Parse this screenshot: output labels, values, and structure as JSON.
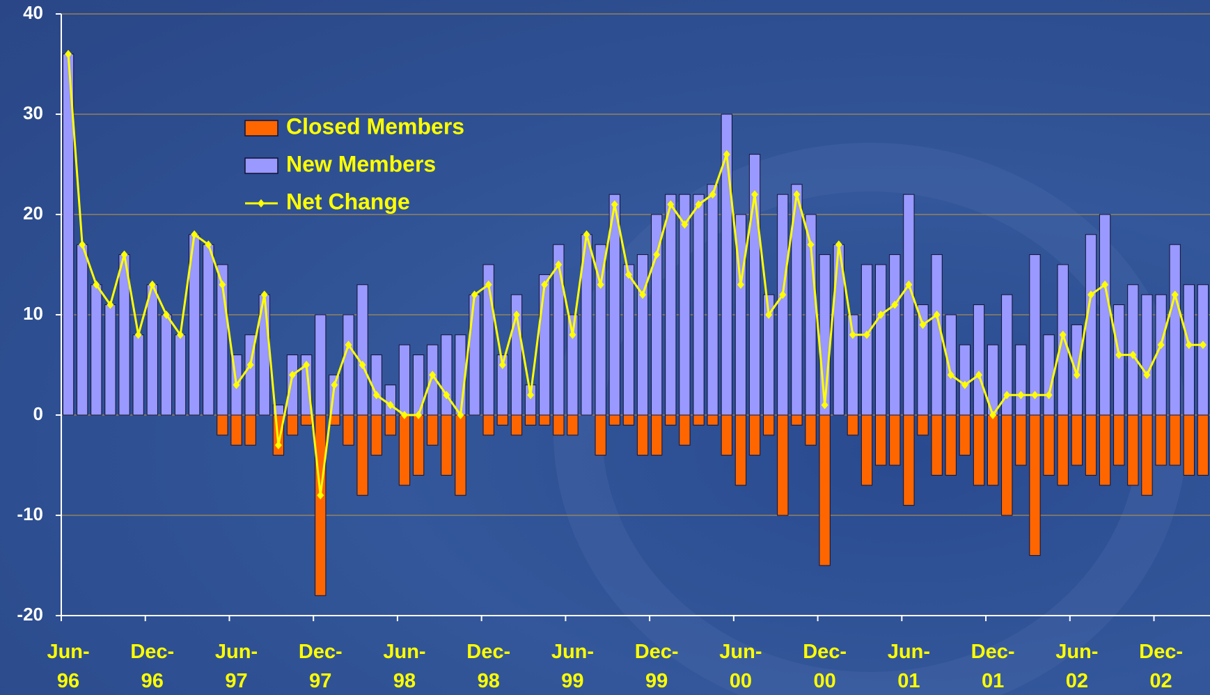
{
  "chart_data": {
    "type": "bar_line",
    "categories": [
      "Jun-96",
      null,
      null,
      null,
      null,
      null,
      "Dec-96",
      null,
      null,
      null,
      null,
      null,
      "Jun-97",
      null,
      null,
      null,
      null,
      null,
      "Dec-97",
      null,
      null,
      null,
      null,
      null,
      "Jun-98",
      null,
      null,
      null,
      null,
      null,
      "Dec-98",
      null,
      null,
      null,
      null,
      null,
      "Jun-99",
      null,
      null,
      null,
      null,
      null,
      "Dec-99",
      null,
      null,
      null,
      null,
      null,
      "Jun-00",
      null,
      null,
      null,
      null,
      null,
      "Dec-00",
      null,
      null,
      null,
      null,
      null,
      "Jun-01",
      null,
      null,
      null,
      null,
      null,
      "Dec-01",
      null,
      null,
      null,
      null,
      null,
      "Jun-02",
      null,
      null,
      null,
      null,
      null,
      "Dec-02",
      null,
      null,
      null
    ],
    "series": [
      {
        "name": "Closed Members",
        "type": "bar",
        "color": "#ff6600",
        "values": [
          0,
          0,
          0,
          0,
          0,
          0,
          0,
          0,
          0,
          0,
          0,
          -2,
          -3,
          -3,
          0,
          -4,
          -2,
          -1,
          -18,
          -1,
          -3,
          -8,
          -4,
          -2,
          -7,
          -6,
          -3,
          -6,
          -8,
          0,
          -2,
          -1,
          -2,
          -1,
          -1,
          -2,
          -2,
          0,
          -4,
          -1,
          -1,
          -4,
          -4,
          -1,
          -3,
          -1,
          -1,
          -4,
          -7,
          -4,
          -2,
          -10,
          -1,
          -3,
          -15,
          0,
          -2,
          -7,
          -5,
          -5,
          -9,
          -2,
          -6,
          -6,
          -4,
          -7,
          -7,
          -10,
          -5,
          -14,
          -6,
          -7,
          -5,
          -6,
          -7,
          -5,
          -7,
          -8,
          -5,
          -5,
          -6,
          -6
        ]
      },
      {
        "name": "New Members",
        "type": "bar",
        "color": "#9999ff",
        "values": [
          36,
          17,
          13,
          11,
          16,
          8,
          13,
          10,
          8,
          18,
          17,
          15,
          6,
          8,
          12,
          1,
          6,
          6,
          10,
          4,
          10,
          13,
          6,
          3,
          7,
          6,
          7,
          8,
          8,
          12,
          15,
          6,
          12,
          3,
          14,
          17,
          10,
          18,
          17,
          22,
          15,
          16,
          20,
          22,
          22,
          22,
          23,
          30,
          20,
          26,
          12,
          22,
          23,
          20,
          16,
          17,
          10,
          15,
          15,
          16,
          22,
          11,
          16,
          10,
          7,
          11,
          7,
          12,
          7,
          16,
          8,
          15,
          9,
          18,
          20,
          11,
          13,
          12,
          12,
          17,
          13,
          13
        ]
      },
      {
        "name": "Net Change",
        "type": "line",
        "color": "#ffff00",
        "values": [
          36,
          17,
          13,
          11,
          16,
          8,
          13,
          10,
          8,
          18,
          17,
          13,
          3,
          5,
          12,
          -3,
          4,
          5,
          -8,
          3,
          7,
          5,
          2,
          1,
          0,
          0,
          4,
          2,
          0,
          12,
          13,
          5,
          10,
          2,
          13,
          15,
          8,
          18,
          13,
          21,
          14,
          12,
          16,
          21,
          19,
          21,
          22,
          26,
          13,
          22,
          10,
          12,
          22,
          17,
          1,
          17,
          8,
          8,
          10,
          11,
          13,
          9,
          10,
          4,
          3,
          4,
          0,
          2,
          2,
          2,
          2,
          8,
          4,
          12,
          13,
          6,
          6,
          4,
          7,
          12,
          7,
          7
        ]
      }
    ],
    "ylim": [
      -20,
      40
    ],
    "yticks": [
      -20,
      -10,
      0,
      10,
      20,
      30,
      40
    ],
    "grid": true,
    "legend": "upper-left"
  }
}
